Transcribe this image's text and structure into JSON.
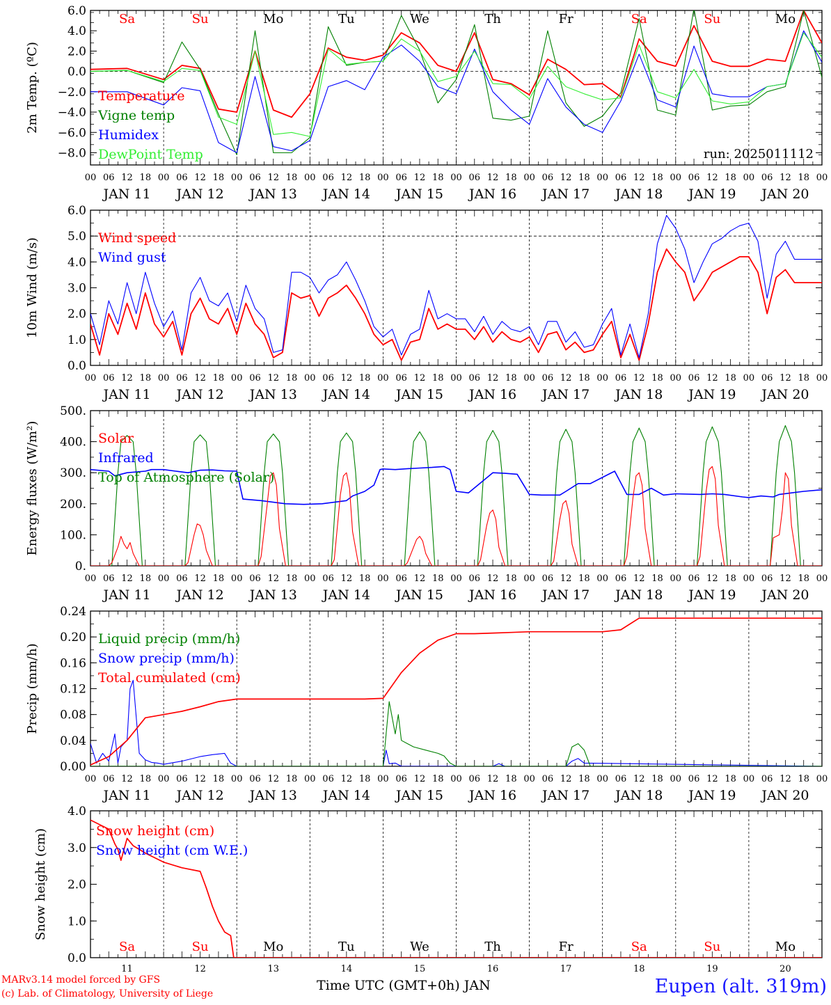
{
  "footer": {
    "model": "MARv3.14 model forced by GFS",
    "lab": "(c) Lab. of Climatology, University of Liege",
    "station": "Eupen (alt. 319m)",
    "xtitle": "Time UTC (GMT+0h) JAN"
  },
  "days": {
    "abbr": [
      "Sa",
      "Su",
      "Mo",
      "Tu",
      "We",
      "Th",
      "Fr",
      "Sa",
      "Su",
      "Mo"
    ],
    "weekend": [
      true,
      true,
      false,
      false,
      false,
      false,
      false,
      true,
      true,
      false
    ],
    "dates": [
      "JAN 11",
      "JAN 12",
      "JAN 13",
      "JAN 14",
      "JAN 15",
      "JAN 16",
      "JAN 17",
      "JAN 18",
      "JAN 19",
      "JAN 20"
    ],
    "numbers": [
      "11",
      "12",
      "13",
      "14",
      "15",
      "16",
      "17",
      "18",
      "19",
      "20"
    ],
    "hour_ticks": [
      "00",
      "06",
      "12",
      "18"
    ],
    "final_tick": "00"
  },
  "colors": {
    "red": "#ff0000",
    "blue": "#0000ff",
    "green": "#008000",
    "light_green": "#33ee33",
    "weekend_label": "#ff0000",
    "weekday_label": "#000000"
  },
  "chart_data": [
    {
      "type": "line",
      "id": "temp",
      "ylabel": "2m Temp. (ºC)",
      "ylim": [
        -9.2,
        6
      ],
      "yticks": [
        -8,
        -6,
        -4,
        -2,
        0,
        2,
        4,
        6
      ],
      "ytick_labels": [
        "−8.0",
        "−6.0",
        "−4.0",
        "−2.0",
        "0.0",
        "2.0",
        "4.0",
        "6.0"
      ],
      "ref_line": 0,
      "annotation": "run: 2025011112",
      "show_day_abbr": true,
      "x_hours": [
        0,
        12,
        24,
        30,
        36,
        42,
        48,
        54,
        60,
        66,
        72,
        78,
        84,
        90,
        96,
        102,
        108,
        114,
        120,
        126,
        132,
        138,
        144,
        150,
        156,
        162,
        168,
        174,
        180,
        186,
        192,
        198,
        204,
        210,
        216,
        222,
        228,
        234,
        240
      ],
      "series": [
        {
          "name": "Temperature",
          "color": "#ff0000",
          "values": [
            0.2,
            0.3,
            -0.8,
            0.6,
            0.3,
            -3.7,
            -4.0,
            2.0,
            -3.8,
            -4.5,
            -2.2,
            2.3,
            1.4,
            1.1,
            1.6,
            3.8,
            2.8,
            0.6,
            0.0,
            3.8,
            -0.8,
            -1.2,
            -2.3,
            1.2,
            0.2,
            -1.3,
            -1.2,
            -2.5,
            3.2,
            1.0,
            0.5,
            4.5,
            1.0,
            0.5,
            0.5,
            1.2,
            1.0,
            6.0,
            2.8
          ]
        },
        {
          "name": "Vigne temp",
          "color": "#008000",
          "values": [
            0.0,
            0.1,
            -1.1,
            2.9,
            0.2,
            -4.2,
            -8.2,
            4.0,
            -8.0,
            -8.0,
            -6.5,
            4.4,
            0.6,
            0.9,
            1.0,
            5.5,
            2.1,
            -3.1,
            -0.8,
            4.6,
            -4.6,
            -4.8,
            -4.4,
            4.0,
            -3.1,
            -5.4,
            -4.4,
            -2.1,
            5.2,
            -3.8,
            -4.3,
            6.2,
            -3.8,
            -3.4,
            -3.3,
            -2.0,
            -1.5,
            6.0,
            -0.6
          ]
        },
        {
          "name": "Humidex",
          "color": "#0000ff",
          "values": [
            -2.0,
            -2.0,
            -3.3,
            -1.6,
            -1.9,
            -7.0,
            -8.0,
            -0.5,
            -7.4,
            -7.8,
            -6.8,
            -1.5,
            -0.9,
            -1.8,
            1.4,
            2.6,
            1.0,
            -1.5,
            -2.2,
            2.2,
            -2.0,
            -3.8,
            -5.2,
            -0.7,
            -3.5,
            -5.2,
            -6.0,
            -2.9,
            1.7,
            -2.8,
            -3.5,
            2.5,
            -2.2,
            -2.5,
            -2.5,
            -1.5,
            -1.2,
            4.0,
            0.9
          ]
        },
        {
          "name": "DewPoint Temp",
          "color": "#33ee33",
          "values": [
            0.0,
            0.1,
            -1.0,
            0.3,
            0.1,
            -4.5,
            -5.2,
            2.0,
            -6.2,
            -6.0,
            -6.4,
            2.2,
            0.7,
            0.9,
            1.0,
            3.2,
            2.0,
            -1.0,
            -0.5,
            2.0,
            -1.2,
            -1.3,
            -2.7,
            0.5,
            -1.5,
            -2.2,
            -2.8,
            -2.6,
            2.6,
            -2.0,
            -2.6,
            0.2,
            -2.9,
            -3.2,
            -3.0,
            -1.5,
            -1.2,
            3.8,
            1.4
          ]
        }
      ]
    },
    {
      "type": "line",
      "id": "wind",
      "ylabel": "10m Wind (m/s)",
      "ylim": [
        0,
        6
      ],
      "yticks": [
        0,
        1,
        2,
        3,
        4,
        5,
        6
      ],
      "ytick_labels": [
        "0.0",
        "1.0",
        "2.0",
        "3.0",
        "4.0",
        "5.0",
        "6.0"
      ],
      "ref_line": 5,
      "x_hours": [
        0,
        3,
        6,
        9,
        12,
        15,
        18,
        21,
        24,
        27,
        30,
        33,
        36,
        39,
        42,
        45,
        48,
        51,
        54,
        57,
        60,
        63,
        66,
        69,
        72,
        75,
        78,
        81,
        84,
        87,
        90,
        93,
        96,
        99,
        102,
        105,
        108,
        111,
        114,
        117,
        120,
        123,
        126,
        129,
        132,
        135,
        138,
        141,
        144,
        147,
        150,
        153,
        156,
        159,
        162,
        165,
        168,
        171,
        174,
        177,
        180,
        183,
        186,
        189,
        192,
        195,
        198,
        201,
        204,
        207,
        210,
        213,
        216,
        219,
        222,
        225,
        228,
        231,
        234,
        237,
        240
      ],
      "series": [
        {
          "name": "Wind speed",
          "color": "#ff0000",
          "values": [
            1.6,
            0.4,
            2.0,
            1.2,
            2.4,
            1.4,
            2.8,
            1.6,
            1.1,
            1.7,
            0.4,
            2.0,
            2.6,
            1.8,
            1.6,
            2.2,
            1.2,
            2.4,
            1.6,
            1.2,
            0.3,
            0.5,
            2.8,
            2.6,
            2.7,
            1.9,
            2.6,
            2.8,
            3.1,
            2.6,
            2.0,
            1.2,
            0.8,
            1.0,
            0.2,
            0.9,
            1.0,
            2.2,
            1.4,
            1.6,
            1.4,
            1.4,
            1.0,
            1.5,
            0.9,
            1.3,
            1.0,
            0.9,
            1.1,
            0.5,
            1.2,
            1.3,
            0.6,
            0.9,
            0.5,
            0.6,
            1.2,
            1.7,
            0.3,
            1.2,
            0.2,
            1.6,
            3.6,
            4.5,
            4.0,
            3.6,
            2.5,
            3.0,
            3.6,
            3.8,
            4.0,
            4.2,
            4.2,
            3.6,
            2.0,
            3.4,
            3.7,
            3.2,
            3.2,
            3.2,
            3.2
          ]
        },
        {
          "name": "Wind gust",
          "color": "#0000ff",
          "values": [
            2.0,
            0.8,
            2.5,
            1.6,
            3.2,
            2.0,
            3.6,
            2.4,
            1.5,
            2.1,
            0.6,
            2.8,
            3.4,
            2.5,
            2.3,
            2.8,
            1.7,
            3.1,
            2.2,
            1.8,
            0.5,
            0.6,
            3.6,
            3.6,
            3.4,
            2.8,
            3.3,
            3.5,
            4.0,
            3.3,
            2.5,
            1.5,
            1.1,
            1.4,
            0.4,
            1.2,
            1.4,
            2.9,
            1.8,
            2.0,
            1.8,
            1.8,
            1.3,
            1.9,
            1.2,
            1.7,
            1.4,
            1.3,
            1.5,
            0.8,
            1.7,
            1.7,
            0.9,
            1.3,
            0.7,
            0.8,
            1.6,
            2.2,
            0.4,
            1.6,
            0.3,
            2.0,
            4.7,
            5.8,
            5.3,
            4.5,
            3.2,
            4.0,
            4.7,
            4.9,
            5.2,
            5.4,
            5.5,
            4.8,
            2.6,
            4.3,
            4.8,
            4.1,
            4.1,
            4.1,
            4.1
          ]
        }
      ]
    },
    {
      "type": "line",
      "id": "energy",
      "ylabel": "Energy fluxes (W/m²)",
      "ylim": [
        0,
        500
      ],
      "yticks": [
        0,
        100,
        200,
        300,
        400,
        500
      ],
      "ytick_labels": [
        "0.",
        "100.",
        "200.",
        "300.",
        "400.",
        "500."
      ],
      "x_hours": [
        0,
        6,
        7,
        9,
        10,
        11,
        12,
        13,
        14,
        16,
        24,
        31,
        32,
        34,
        35,
        36,
        37,
        38,
        40,
        48,
        55,
        56,
        58,
        59,
        60,
        61,
        62,
        64,
        72,
        79,
        80,
        82,
        83,
        84,
        85,
        86,
        88,
        96,
        103,
        104,
        106,
        107,
        108,
        109,
        110,
        112,
        120,
        127,
        128,
        130,
        131,
        132,
        133,
        134,
        136,
        144,
        151,
        152,
        154,
        155,
        156,
        157,
        158,
        160,
        168,
        175,
        176,
        178,
        179,
        180,
        181,
        182,
        184,
        192,
        199,
        200,
        202,
        203,
        204,
        205,
        206,
        208,
        216,
        223,
        224,
        226,
        227,
        228,
        229,
        230,
        232,
        240
      ],
      "series": [
        {
          "name": "Solar",
          "color": "#ff0000",
          "values": [
            0,
            0,
            10,
            60,
            95,
            70,
            55,
            75,
            40,
            0,
            0,
            0,
            10,
            100,
            135,
            130,
            100,
            50,
            0,
            0,
            0,
            30,
            200,
            290,
            300,
            260,
            120,
            0,
            0,
            0,
            20,
            230,
            290,
            300,
            250,
            110,
            0,
            0,
            0,
            10,
            60,
            85,
            95,
            80,
            40,
            0,
            0,
            0,
            20,
            130,
            170,
            180,
            150,
            60,
            0,
            0,
            0,
            15,
            150,
            200,
            210,
            170,
            70,
            0,
            0,
            0,
            30,
            220,
            290,
            300,
            260,
            120,
            0,
            0,
            0,
            30,
            240,
            310,
            320,
            280,
            130,
            0,
            0,
            0,
            90,
            100,
            180,
            300,
            280,
            130,
            0,
            0
          ]
        }
      ]
    },
    {
      "type": "line",
      "id": "precip",
      "ylabel": "Precip (mm/h)",
      "ylim": [
        0,
        0.24
      ],
      "yticks": [
        0,
        0.04,
        0.08,
        0.12,
        0.16,
        0.2,
        0.24
      ],
      "ytick_labels": [
        "0.00",
        "0.04",
        "0.08",
        "0.12",
        "0.16",
        "0.20",
        "0.24"
      ],
      "x_hours": [
        0,
        6,
        12,
        18,
        24,
        30,
        36,
        42,
        48,
        54,
        60,
        66,
        72,
        78,
        84,
        90,
        96,
        102,
        108,
        114,
        120,
        126,
        132,
        138,
        144,
        150,
        156,
        162,
        168,
        174,
        180,
        186,
        192,
        198,
        204,
        210,
        216,
        222,
        228,
        234,
        240
      ],
      "series": [
        {
          "name": "Total cumulated (cm)",
          "color": "#ff0000",
          "values": [
            0.002,
            0.015,
            0.04,
            0.075,
            0.08,
            0.085,
            0.092,
            0.1,
            0.104,
            0.104,
            0.104,
            0.104,
            0.104,
            0.104,
            0.104,
            0.104,
            0.105,
            0.145,
            0.175,
            0.195,
            0.205,
            0.205,
            0.206,
            0.207,
            0.208,
            0.208,
            0.208,
            0.208,
            0.208,
            0.211,
            0.229,
            0.229,
            0.229,
            0.229,
            0.229,
            0.229,
            0.229,
            0.229,
            0.229,
            0.229,
            0.229
          ]
        }
      ],
      "bursts": [
        {
          "name": "Snow precip (mm/h)",
          "color": "#0000ff",
          "x_hours": [
            0,
            2,
            4,
            6,
            8,
            9,
            10,
            12,
            13,
            14,
            16,
            18,
            20,
            22,
            24,
            30,
            36,
            40,
            44,
            46,
            48,
            60,
            96,
            97,
            98,
            100,
            102,
            108,
            120,
            132,
            134,
            136,
            144,
            156,
            158,
            160,
            162,
            240
          ],
          "values": [
            0.035,
            0.005,
            0.02,
            0.008,
            0.05,
            0.005,
            0.03,
            0.04,
            0.12,
            0.133,
            0.02,
            0.01,
            0.006,
            0.005,
            0.003,
            0.008,
            0.015,
            0.018,
            0.02,
            0.005,
            0.0,
            0.0,
            0.0,
            0.025,
            0.004,
            0.005,
            0.0,
            0.0,
            0.0,
            0.0,
            0.004,
            0.0,
            0.0,
            0.0,
            0.008,
            0.012,
            0.005,
            0.0
          ]
        },
        {
          "name": "Liquid precip (mm/h)",
          "color": "#008000",
          "x_hours": [
            0,
            96,
            98,
            100,
            101,
            102,
            104,
            106,
            110,
            114,
            116,
            118,
            120,
            132,
            156,
            158,
            160,
            162,
            164,
            240
          ],
          "values": [
            0.0,
            0.0,
            0.1,
            0.05,
            0.08,
            0.04,
            0.035,
            0.03,
            0.025,
            0.02,
            0.016,
            0.005,
            0.0,
            0.0,
            0.0,
            0.03,
            0.035,
            0.025,
            0.0,
            0.0
          ]
        }
      ]
    },
    {
      "type": "line",
      "id": "snow",
      "ylabel": "Snow height (cm)",
      "ylim": [
        0,
        4
      ],
      "yticks": [
        0,
        1,
        2,
        3,
        4
      ],
      "ytick_labels": [
        "0.0",
        "1.0",
        "2.0",
        "3.0",
        "4.0"
      ],
      "show_day_abbr_bottom": true,
      "x_hours": [
        0,
        6,
        8,
        9,
        10,
        12,
        14,
        18,
        24,
        30,
        36,
        38,
        40,
        42,
        44,
        46,
        47,
        48,
        240
      ],
      "series": [
        {
          "name": "Snow height (cm)",
          "color": "#ff0000",
          "values": [
            3.75,
            3.5,
            3.1,
            2.95,
            2.65,
            3.25,
            3.05,
            2.85,
            2.6,
            2.45,
            2.35,
            1.9,
            1.4,
            1.0,
            0.7,
            0.6,
            0.0,
            0.0,
            0.0
          ]
        },
        {
          "name": "Snow height (cm W.E.)",
          "color": "#0000ff",
          "legend_only": true,
          "values": []
        }
      ]
    }
  ]
}
